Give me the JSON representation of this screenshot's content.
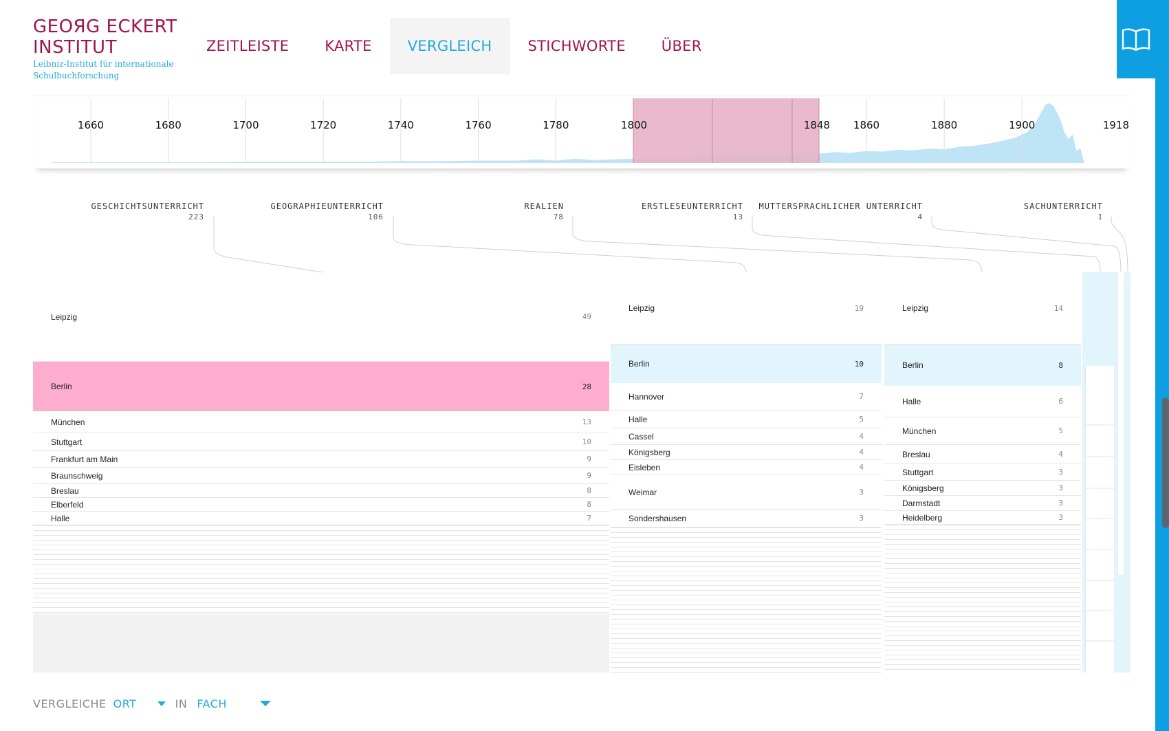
{
  "logo": {
    "line1": "GEOЯG ECKERT",
    "line2": "INSTITUT",
    "subtitle1": "Leibniz-Institut für internationale",
    "subtitle2": "Schulbuchforschung"
  },
  "nav": [
    {
      "label": "ZEITLEISTE",
      "active": false
    },
    {
      "label": "KARTE",
      "active": false
    },
    {
      "label": "VERGLEICH",
      "active": true
    },
    {
      "label": "STICHWORTE",
      "active": false
    },
    {
      "label": "ÜBER",
      "active": false
    }
  ],
  "reader_icon": "book-icon",
  "colors": {
    "brand": "#a3134a",
    "accent": "#23a8de",
    "selection": "#e6b3c7",
    "highlight_pink": "#fdaecf",
    "highlight_blue": "#e2f4fc",
    "area": "#bfe4f6"
  },
  "timeline": {
    "ticks": [
      "1660",
      "1680",
      "1700",
      "1720",
      "1740",
      "1760",
      "1780",
      "1800",
      "1848",
      "1860",
      "1880",
      "1900",
      "1918"
    ],
    "range": [
      1645,
      1918
    ],
    "selection": [
      1800,
      1848
    ],
    "density_profile": [
      [
        1650,
        0.01
      ],
      [
        1660,
        0.01
      ],
      [
        1670,
        0.01
      ],
      [
        1680,
        0.01
      ],
      [
        1690,
        0.01
      ],
      [
        1700,
        0.02
      ],
      [
        1710,
        0.02
      ],
      [
        1720,
        0.02
      ],
      [
        1730,
        0.02
      ],
      [
        1740,
        0.03
      ],
      [
        1750,
        0.03
      ],
      [
        1760,
        0.04
      ],
      [
        1770,
        0.04
      ],
      [
        1775,
        0.06
      ],
      [
        1780,
        0.04
      ],
      [
        1785,
        0.07
      ],
      [
        1790,
        0.05
      ],
      [
        1795,
        0.06
      ],
      [
        1800,
        0.07
      ],
      [
        1805,
        0.09
      ],
      [
        1810,
        0.08
      ],
      [
        1815,
        0.1
      ],
      [
        1820,
        0.12
      ],
      [
        1825,
        0.11
      ],
      [
        1830,
        0.14
      ],
      [
        1835,
        0.13
      ],
      [
        1840,
        0.16
      ],
      [
        1845,
        0.17
      ],
      [
        1848,
        0.16
      ],
      [
        1852,
        0.18
      ],
      [
        1856,
        0.17
      ],
      [
        1860,
        0.2
      ],
      [
        1864,
        0.19
      ],
      [
        1868,
        0.22
      ],
      [
        1872,
        0.21
      ],
      [
        1876,
        0.24
      ],
      [
        1880,
        0.23
      ],
      [
        1884,
        0.27
      ],
      [
        1888,
        0.29
      ],
      [
        1892,
        0.33
      ],
      [
        1895,
        0.37
      ],
      [
        1898,
        0.42
      ],
      [
        1901,
        0.5
      ],
      [
        1903,
        0.62
      ],
      [
        1905,
        0.85
      ],
      [
        1906,
        0.97
      ],
      [
        1907,
        1.0
      ],
      [
        1908,
        0.96
      ],
      [
        1909,
        0.85
      ],
      [
        1910,
        0.7
      ],
      [
        1911,
        0.5
      ],
      [
        1912,
        0.4
      ],
      [
        1913,
        0.48
      ],
      [
        1914,
        0.2
      ],
      [
        1915,
        0.25
      ],
      [
        1916,
        0.0
      ]
    ]
  },
  "subjects": [
    {
      "name": "GESCHICHTSUNTERRICHT",
      "count": "223"
    },
    {
      "name": "GEOGRAPHIEUNTERRICHT",
      "count": "106"
    },
    {
      "name": "REALIEN",
      "count": "78"
    },
    {
      "name": "ERSTLESEUNTERRICHT",
      "count": "13"
    },
    {
      "name": "MUTTERSPRACHLICHER UNTERRICHT",
      "count": "4"
    },
    {
      "name": "SACHUNTERRICHT",
      "count": "1"
    }
  ],
  "columns": [
    {
      "subject": "GESCHICHTSUNTERRICHT",
      "rows": [
        {
          "city": "Leipzig",
          "count": "49"
        },
        {
          "city": "Berlin",
          "count": "28",
          "highlight": "pink"
        },
        {
          "city": "München",
          "count": "13"
        },
        {
          "city": "Stuttgart",
          "count": "10"
        },
        {
          "city": "Frankfurt am Main",
          "count": "9"
        },
        {
          "city": "Braunschweig",
          "count": "9"
        },
        {
          "city": "Breslau",
          "count": "8"
        },
        {
          "city": "Elberfeld",
          "count": "8"
        },
        {
          "city": "Halle",
          "count": "7"
        }
      ]
    },
    {
      "subject": "GEOGRAPHIEUNTERRICHT",
      "rows": [
        {
          "city": "Leipzig",
          "count": "19"
        },
        {
          "city": "Berlin",
          "count": "10",
          "highlight": "blue"
        },
        {
          "city": "Hannover",
          "count": "7"
        },
        {
          "city": "Halle",
          "count": "5"
        },
        {
          "city": "Cassel",
          "count": "4"
        },
        {
          "city": "Königsberg",
          "count": "4"
        },
        {
          "city": "Eisleben",
          "count": "4"
        },
        {
          "city": "Weimar",
          "count": "3"
        },
        {
          "city": "Sondershausen",
          "count": "3"
        }
      ]
    },
    {
      "subject": "REALIEN",
      "rows": [
        {
          "city": "Leipzig",
          "count": "14"
        },
        {
          "city": "Berlin",
          "count": "8",
          "highlight": "blue"
        },
        {
          "city": "Halle",
          "count": "6"
        },
        {
          "city": "München",
          "count": "5"
        },
        {
          "city": "Breslau",
          "count": "4"
        },
        {
          "city": "Stuttgart",
          "count": "3"
        },
        {
          "city": "Königsberg",
          "count": "3"
        },
        {
          "city": "Darmstadt",
          "count": "3"
        },
        {
          "city": "Heidelberg",
          "count": "3"
        }
      ]
    }
  ],
  "controls": {
    "compare_label": "VERGLEICHE",
    "compare_value": "ORT",
    "in_label": "IN",
    "in_value": "FACH"
  }
}
